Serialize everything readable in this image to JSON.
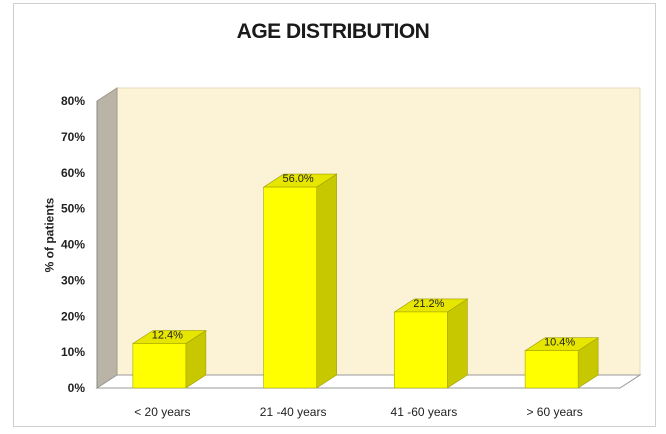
{
  "chart_data": {
    "type": "bar",
    "title": "AGE DISTRIBUTION",
    "xlabel": "",
    "ylabel": "% of patients",
    "categories": [
      "< 20 years",
      "21 -40 years",
      "41 -60 years",
      "> 60 years"
    ],
    "values": [
      12.4,
      56.0,
      21.2,
      10.4
    ],
    "data_labels": [
      "12.4%",
      "56.0%",
      "21.2%",
      "10.4%"
    ],
    "y_ticks": [
      "0%",
      "10%",
      "20%",
      "30%",
      "40%",
      "50%",
      "60%",
      "70%",
      "80%"
    ],
    "ylim": [
      0,
      80
    ],
    "grid": false,
    "legend": "none",
    "colors": {
      "bar_front": "#ffff00",
      "bar_side": "#c8c800",
      "bar_top": "#e6e600",
      "plot_back": "#fcf2d6",
      "plot_wall": "#b9b4a6",
      "floor": "#ffffff"
    }
  }
}
